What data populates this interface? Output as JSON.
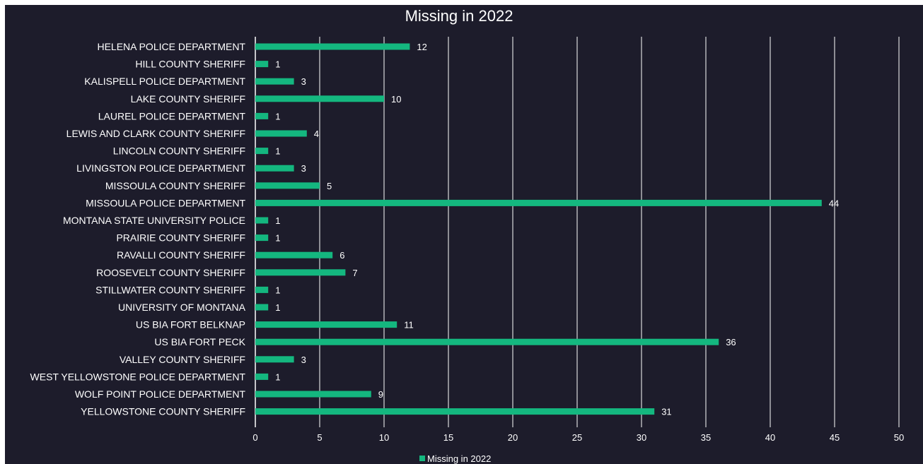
{
  "chart_data": {
    "type": "bar",
    "orientation": "horizontal",
    "title": "Missing in 2022",
    "categories": [
      "HELENA POLICE DEPARTMENT",
      "HILL COUNTY SHERIFF",
      "KALISPELL POLICE DEPARTMENT",
      "LAKE COUNTY SHERIFF",
      "LAUREL POLICE DEPARTMENT",
      "LEWIS AND CLARK COUNTY SHERIFF",
      "LINCOLN COUNTY SHERIFF",
      "LIVINGSTON POLICE DEPARTMENT",
      "MISSOULA COUNTY SHERIFF",
      "MISSOULA POLICE DEPARTMENT",
      "MONTANA STATE UNIVERSITY POLICE",
      "PRAIRIE COUNTY SHERIFF",
      "RAVALLI COUNTY SHERIFF",
      "ROOSEVELT COUNTY SHERIFF",
      "STILLWATER COUNTY SHERIFF",
      "UNIVERSITY OF MONTANA",
      "US BIA FORT BELKNAP",
      "US BIA FORT PECK",
      "VALLEY COUNTY SHERIFF",
      "WEST YELLOWSTONE POLICE DEPARTMENT",
      "WOLF POINT POLICE DEPARTMENT",
      "YELLOWSTONE COUNTY SHERIFF"
    ],
    "series": [
      {
        "name": "Missing in 2022",
        "values": [
          12,
          1,
          3,
          10,
          1,
          4,
          1,
          3,
          5,
          44,
          1,
          1,
          6,
          7,
          1,
          1,
          11,
          36,
          3,
          1,
          9,
          31
        ]
      }
    ],
    "xlim": [
      0,
      50
    ],
    "x_ticks": [
      "0",
      "5",
      "10",
      "15",
      "20",
      "25",
      "30",
      "35",
      "40",
      "45",
      "50"
    ],
    "grid": "vertical",
    "legend": "bottom-center",
    "colors": {
      "background": "#1d1c2b",
      "bar": "#14b77f",
      "grid": "#ffffff",
      "text": "#ffffff"
    }
  }
}
